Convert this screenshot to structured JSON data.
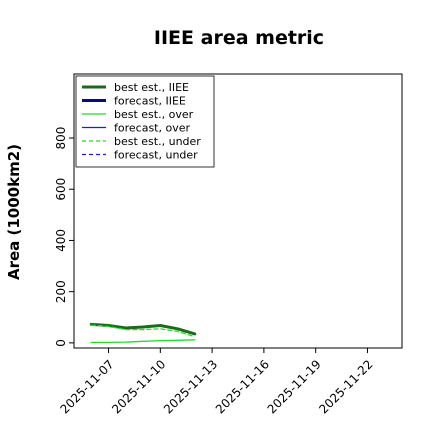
{
  "chart_data": {
    "type": "line",
    "title": "IIEE area metric",
    "xlabel": "",
    "ylabel": "Area (1000km2)",
    "ylim": [
      -20,
      1050
    ],
    "yticks": [
      0,
      200,
      400,
      600,
      800
    ],
    "ytick_labels": [
      "0",
      "200",
      "400",
      "600",
      "800"
    ],
    "xlim": [
      "2025-11-05",
      "2025-11-24"
    ],
    "xticks": [
      "2025-11-07",
      "2025-11-10",
      "2025-11-13",
      "2025-11-16",
      "2025-11-19",
      "2025-11-22"
    ],
    "xtick_labels": [
      "2025-11-07",
      "2025-11-10",
      "2025-11-13",
      "2025-11-16",
      "2025-11-19",
      "2025-11-22"
    ],
    "highlight_tick": "2025-11-13",
    "highlight_color": "#2e8b2e",
    "grid": false,
    "legend_position": "top-left",
    "series": [
      {
        "name": "best est., IIEE",
        "color": "#1b6b1b",
        "style": "solid",
        "width": 3,
        "x": [
          "2025-11-06",
          "2025-11-07",
          "2025-11-08",
          "2025-11-09",
          "2025-11-10",
          "2025-11-11",
          "2025-11-12"
        ],
        "values": [
          72,
          68,
          58,
          62,
          68,
          55,
          35
        ]
      },
      {
        "name": "forecast, IIEE",
        "color": "#0a0a78",
        "style": "solid",
        "width": 3,
        "x": [],
        "values": []
      },
      {
        "name": "best est., over",
        "color": "#22dd22",
        "style": "solid",
        "width": 1.3,
        "x": [
          "2025-11-06",
          "2025-11-07",
          "2025-11-08",
          "2025-11-09",
          "2025-11-10",
          "2025-11-11",
          "2025-11-12"
        ],
        "values": [
          2,
          2,
          3,
          6,
          9,
          10,
          12
        ]
      },
      {
        "name": "forecast, over",
        "color": "#1a1aee",
        "style": "solid",
        "width": 1.3,
        "x": [],
        "values": []
      },
      {
        "name": "best est., under",
        "color": "#22dd22",
        "style": "dashed",
        "width": 1.3,
        "x": [
          "2025-11-06",
          "2025-11-07",
          "2025-11-08",
          "2025-11-09",
          "2025-11-10",
          "2025-11-11",
          "2025-11-12"
        ],
        "values": [
          70,
          64,
          52,
          52,
          55,
          45,
          24
        ]
      },
      {
        "name": "forecast, under",
        "color": "#1a1aee",
        "style": "dashed",
        "width": 1.3,
        "x": [],
        "values": []
      }
    ]
  }
}
